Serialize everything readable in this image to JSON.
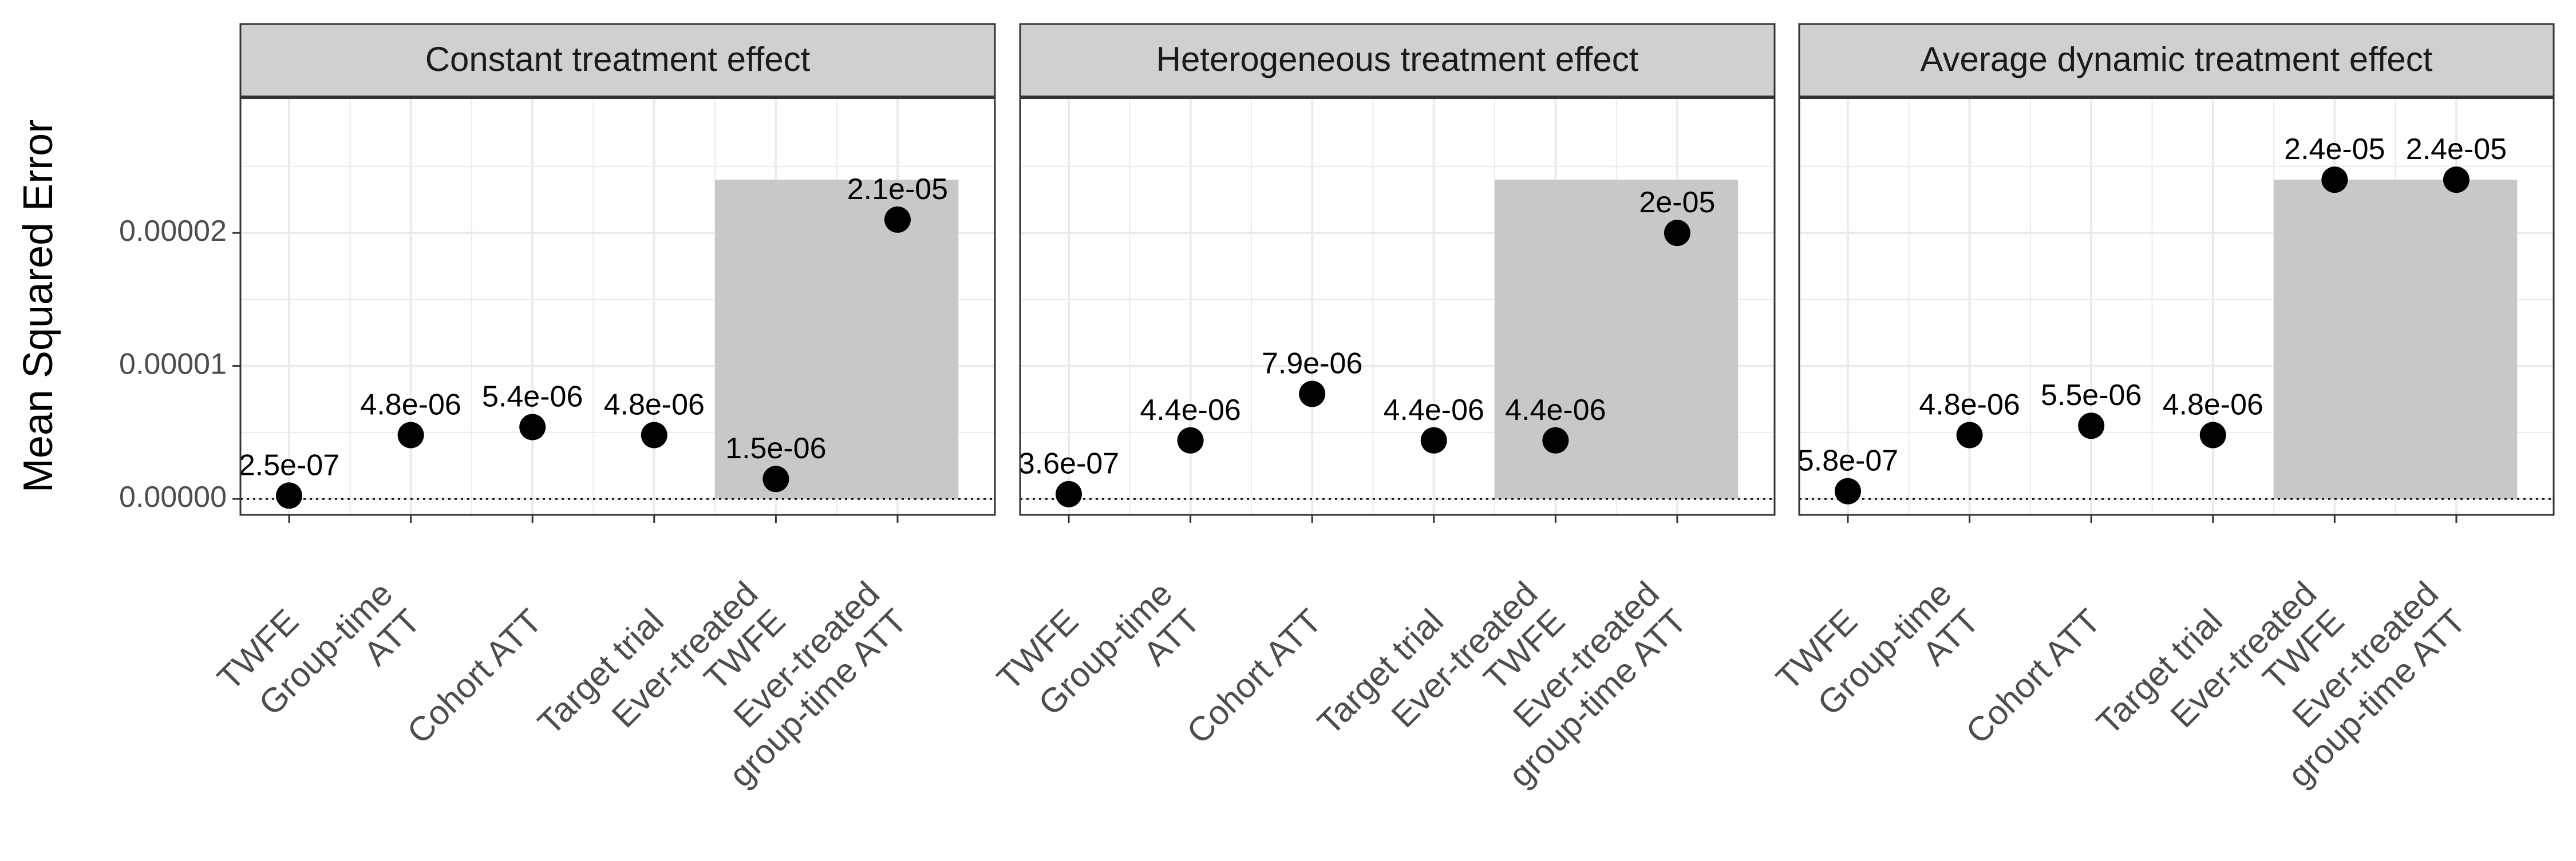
{
  "y_axis": {
    "label": "Mean Squared Error",
    "ylim": [
      -1.2e-06,
      3.02e-05
    ],
    "ticks": [
      {
        "value": 0,
        "label": "0.00000"
      },
      {
        "value": 1e-05,
        "label": "0.00001"
      },
      {
        "value": 2e-05,
        "label": "0.00002"
      }
    ],
    "minor_ticks": [
      5e-06,
      1.5e-05,
      2.5e-05
    ]
  },
  "reference_line": {
    "value": 0,
    "style": "dotted"
  },
  "colors": {
    "strip_fill": "#d0d0d0",
    "highlight_fill": "#c8c8c8",
    "grid": "#ebebeb",
    "point": "#000000",
    "panel_border": "#333333"
  },
  "chart_data": {
    "type": "scatter",
    "categories": [
      "TWFE",
      "Group-time ATT",
      "Cohort ATT",
      "Target trial",
      "Ever-treated TWFE",
      "Ever-treated group-time ATT"
    ],
    "category_lines": [
      [
        "TWFE"
      ],
      [
        "Group-time",
        "ATT"
      ],
      [
        "Cohort ATT"
      ],
      [
        "Target trial"
      ],
      [
        "Ever-treated",
        "TWFE"
      ],
      [
        "Ever-treated",
        "group-time ATT"
      ]
    ],
    "highlight": {
      "from_category": 5,
      "to_category": 6,
      "ymax": 2.4e-05
    },
    "panels": [
      {
        "title": "Constant treatment effect",
        "values": [
          2.5e-07,
          4.8e-06,
          5.4e-06,
          4.8e-06,
          1.5e-06,
          2.1e-05
        ],
        "labels": [
          "2.5e-07",
          "4.8e-06",
          "5.4e-06",
          "4.8e-06",
          "1.5e-06",
          "2.1e-05"
        ]
      },
      {
        "title": "Heterogeneous treatment effect",
        "values": [
          3.6e-07,
          4.4e-06,
          7.9e-06,
          4.4e-06,
          4.4e-06,
          2e-05
        ],
        "labels": [
          "3.6e-07",
          "4.4e-06",
          "7.9e-06",
          "4.4e-06",
          "4.4e-06",
          "2e-05"
        ]
      },
      {
        "title": "Average dynamic treatment effect",
        "values": [
          5.8e-07,
          4.8e-06,
          5.5e-06,
          4.8e-06,
          2.4e-05,
          2.4e-05
        ],
        "labels": [
          "5.8e-07",
          "4.8e-06",
          "5.5e-06",
          "4.8e-06",
          "2.4e-05",
          "2.4e-05"
        ]
      }
    ]
  }
}
